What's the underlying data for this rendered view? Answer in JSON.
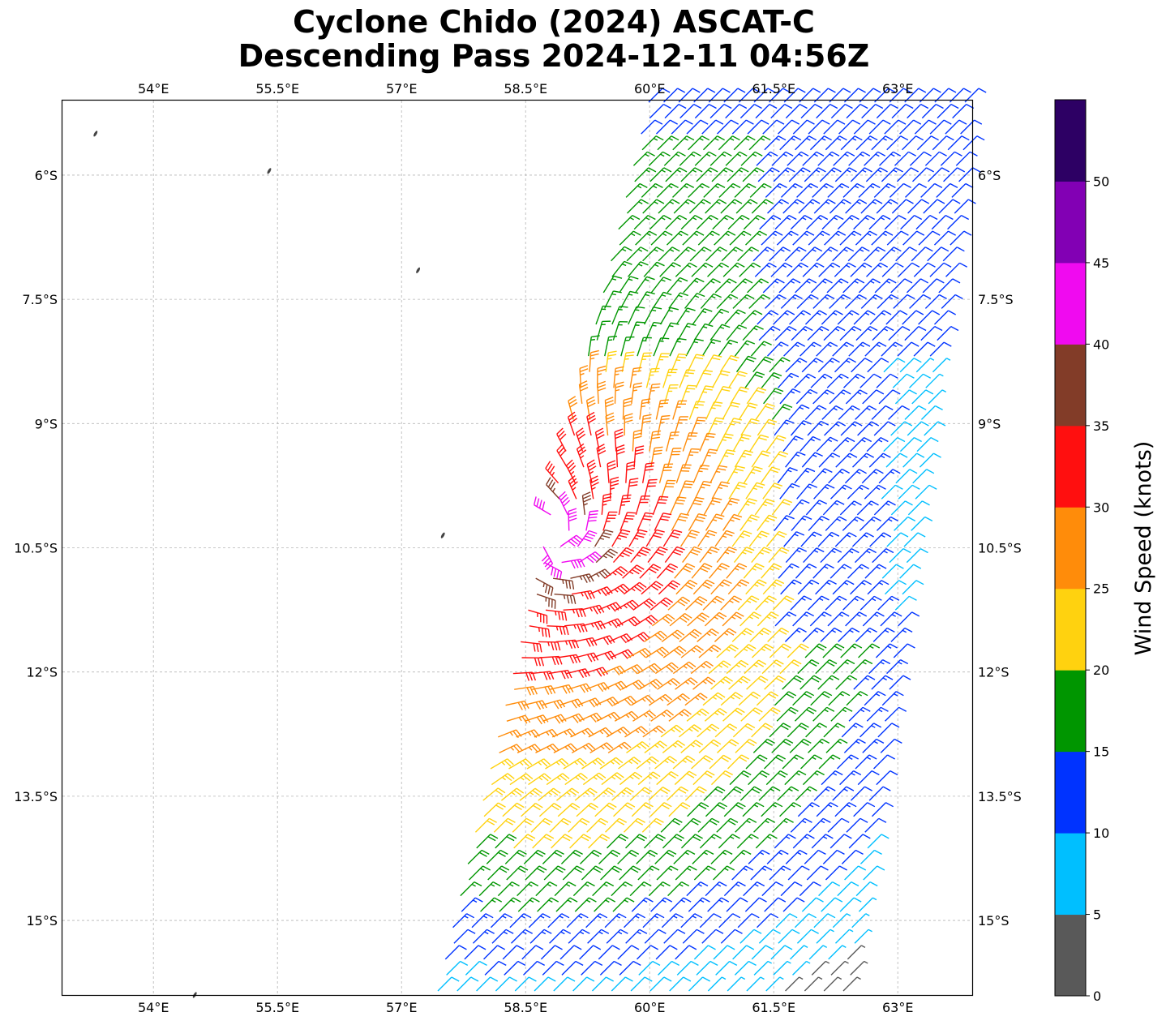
{
  "title": {
    "line1": "Cyclone Chido (2024) ASCAT-C",
    "line2": "Descending Pass 2024-12-11 04:56Z"
  },
  "map": {
    "lon_range_degE": [
      52.9,
      63.9
    ],
    "lat_range_degS": [
      5.1,
      15.9
    ],
    "lon_ticks": [
      {
        "value": 54,
        "label": "54°E"
      },
      {
        "value": 55.5,
        "label": "55.5°E"
      },
      {
        "value": 57,
        "label": "57°E"
      },
      {
        "value": 58.5,
        "label": "58.5°E"
      },
      {
        "value": 60,
        "label": "60°E"
      },
      {
        "value": 61.5,
        "label": "61.5°E"
      },
      {
        "value": 63,
        "label": "63°E"
      }
    ],
    "lat_ticks": [
      {
        "value": 6,
        "label": "6°S"
      },
      {
        "value": 7.5,
        "label": "7.5°S"
      },
      {
        "value": 9,
        "label": "9°S"
      },
      {
        "value": 10.5,
        "label": "10.5°S"
      },
      {
        "value": 12,
        "label": "12°S"
      },
      {
        "value": 13.5,
        "label": "13.5°S"
      },
      {
        "value": 15,
        "label": "15°S"
      }
    ],
    "gridlines": true,
    "cyclone_center_approx": {
      "lon": 58.8,
      "lat": 10.4
    },
    "islands_approx": [
      {
        "lon": 53.3,
        "lat": 5.5
      },
      {
        "lon": 55.4,
        "lat": 5.95
      },
      {
        "lon": 57.2,
        "lat": 7.15
      },
      {
        "lon": 57.5,
        "lat": 10.35
      },
      {
        "lon": 54.5,
        "lat": 15.9
      }
    ]
  },
  "colorbar": {
    "label": "Wind Speed (knots)",
    "ticks": [
      "0",
      "5",
      "10",
      "15",
      "20",
      "25",
      "30",
      "35",
      "40",
      "45",
      "50"
    ],
    "colors": [
      "#595959",
      "#00bfff",
      "#0033ff",
      "#009600",
      "#ffd20f",
      "#ff8c0a",
      "#ff0f0f",
      "#823c28",
      "#f00af0",
      "#8200b4",
      "#2d0064"
    ]
  }
}
